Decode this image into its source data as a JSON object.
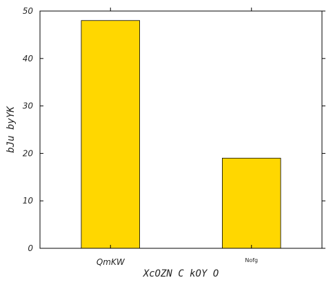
{
  "chart_data": {
    "type": "bar",
    "categories": [
      "QmKW",
      "Nofg"
    ],
    "values": [
      48,
      19
    ],
    "xlabel": "XcOZN C kOY O",
    "ylabel": "bJu byYK",
    "ylim": [
      0,
      50
    ],
    "yticks": [
      0,
      10,
      20,
      30,
      40,
      50
    ],
    "grid": false,
    "bar_color": "#ffd700",
    "bar_edge_color": "#000000"
  }
}
